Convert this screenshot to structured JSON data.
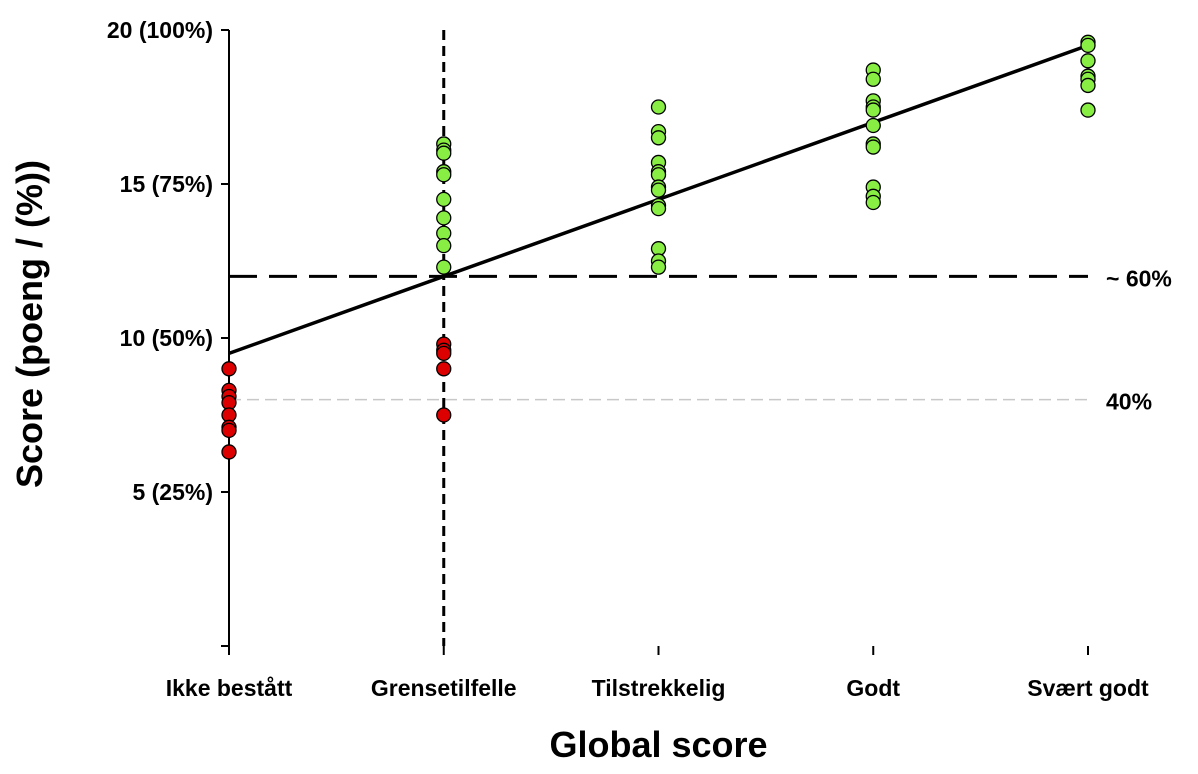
{
  "chart_data": {
    "type": "scatter",
    "xlabel": "Global score",
    "ylabel": "Score (poeng / (%))",
    "categories": [
      "Ikke bestått",
      "Grensetilfelle",
      "Tilstrekkelig",
      "Godt",
      "Svært godt"
    ],
    "ylim": [
      0,
      20
    ],
    "yticks": [
      {
        "value": 5,
        "label": "5 (25%)"
      },
      {
        "value": 10,
        "label": "10 (50%)"
      },
      {
        "value": 15,
        "label": "15 (75%)"
      },
      {
        "value": 20,
        "label": "20 (100%)"
      }
    ],
    "series": [
      {
        "color": "#dd0000",
        "points": [
          {
            "x": 0,
            "y": 9.0
          },
          {
            "x": 0,
            "y": 8.3
          },
          {
            "x": 0,
            "y": 8.1
          },
          {
            "x": 0,
            "y": 7.9
          },
          {
            "x": 0,
            "y": 7.5
          },
          {
            "x": 0,
            "y": 7.1
          },
          {
            "x": 0,
            "y": 7.0
          },
          {
            "x": 0,
            "y": 6.3
          },
          {
            "x": 1,
            "y": 9.8
          },
          {
            "x": 1,
            "y": 9.6
          },
          {
            "x": 1,
            "y": 9.5
          },
          {
            "x": 1,
            "y": 9.0
          },
          {
            "x": 1,
            "y": 7.5
          }
        ]
      },
      {
        "color": "#88ee44",
        "points": [
          {
            "x": 1,
            "y": 16.3
          },
          {
            "x": 1,
            "y": 16.1
          },
          {
            "x": 1,
            "y": 16.0
          },
          {
            "x": 1,
            "y": 15.4
          },
          {
            "x": 1,
            "y": 15.3
          },
          {
            "x": 1,
            "y": 14.5
          },
          {
            "x": 1,
            "y": 13.9
          },
          {
            "x": 1,
            "y": 13.4
          },
          {
            "x": 1,
            "y": 13.0
          },
          {
            "x": 1,
            "y": 12.3
          },
          {
            "x": 2,
            "y": 17.5
          },
          {
            "x": 2,
            "y": 16.7
          },
          {
            "x": 2,
            "y": 16.5
          },
          {
            "x": 2,
            "y": 15.7
          },
          {
            "x": 2,
            "y": 15.4
          },
          {
            "x": 2,
            "y": 15.3
          },
          {
            "x": 2,
            "y": 14.9
          },
          {
            "x": 2,
            "y": 14.8
          },
          {
            "x": 2,
            "y": 14.3
          },
          {
            "x": 2,
            "y": 14.2
          },
          {
            "x": 2,
            "y": 12.9
          },
          {
            "x": 2,
            "y": 12.5
          },
          {
            "x": 2,
            "y": 12.3
          },
          {
            "x": 3,
            "y": 18.7
          },
          {
            "x": 3,
            "y": 18.4
          },
          {
            "x": 3,
            "y": 17.7
          },
          {
            "x": 3,
            "y": 17.5
          },
          {
            "x": 3,
            "y": 17.4
          },
          {
            "x": 3,
            "y": 16.9
          },
          {
            "x": 3,
            "y": 16.3
          },
          {
            "x": 3,
            "y": 16.2
          },
          {
            "x": 3,
            "y": 14.9
          },
          {
            "x": 3,
            "y": 14.6
          },
          {
            "x": 3,
            "y": 14.4
          },
          {
            "x": 4,
            "y": 19.6
          },
          {
            "x": 4,
            "y": 19.5
          },
          {
            "x": 4,
            "y": 19.0
          },
          {
            "x": 4,
            "y": 18.5
          },
          {
            "x": 4,
            "y": 18.4
          },
          {
            "x": 4,
            "y": 18.2
          },
          {
            "x": 4,
            "y": 17.4
          }
        ]
      }
    ],
    "trendline": {
      "x": [
        0,
        4
      ],
      "y": [
        9.5,
        19.5
      ]
    },
    "reference_lines": [
      {
        "orientation": "horizontal",
        "value": 12.0,
        "style": "long-dash",
        "label": "~ 60%"
      },
      {
        "orientation": "horizontal",
        "value": 8.0,
        "style": "light-dash",
        "label": "40%"
      },
      {
        "orientation": "vertical",
        "value": 1,
        "style": "short-dash"
      }
    ],
    "grid": false,
    "legend": "none"
  }
}
